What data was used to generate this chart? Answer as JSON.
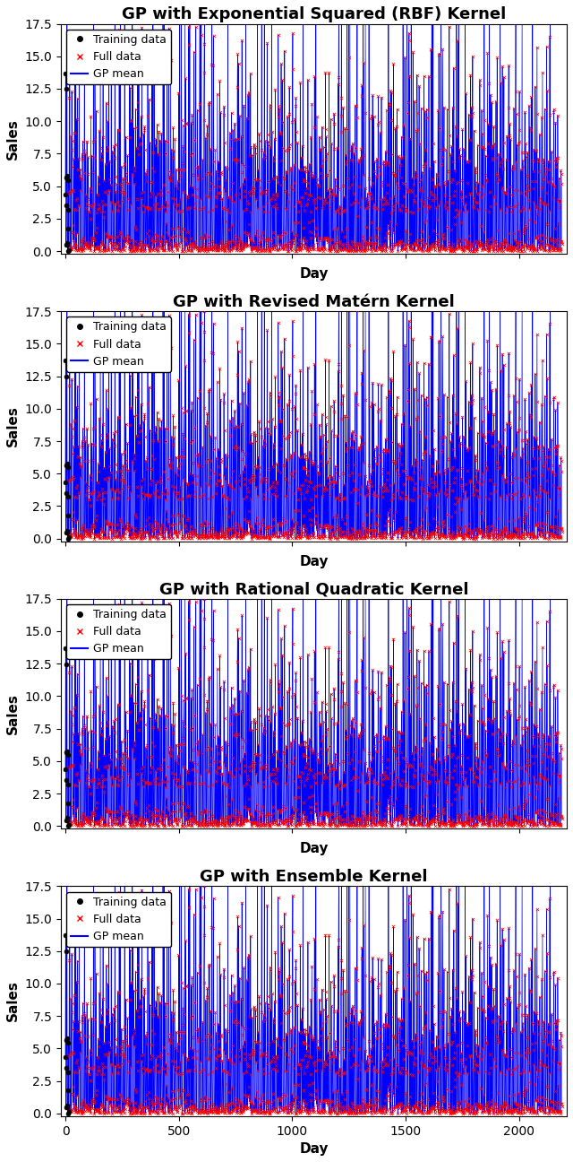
{
  "titles": [
    "GP with Exponential Squared (RBF) Kernel",
    "GP with Revised Matérn Kernel",
    "GP with Rational Quadratic Kernel",
    "GP with Ensemble Kernel"
  ],
  "xlabel": "Day",
  "ylabel": "Sales",
  "ylim": [
    -0.2,
    17.5
  ],
  "yticks": [
    0.0,
    2.5,
    5.0,
    7.5,
    10.0,
    12.5,
    15.0,
    17.5
  ],
  "xticks": [
    0,
    500,
    1000,
    1500,
    2000
  ],
  "n_full": 2190,
  "n_train": 15,
  "gp_mean_color": "blue",
  "full_data_color": "red",
  "train_data_color": "black",
  "background_color": "white",
  "title_fontsize": 13,
  "label_fontsize": 11,
  "tick_fontsize": 10,
  "legend_fontsize": 9,
  "seed": 42
}
